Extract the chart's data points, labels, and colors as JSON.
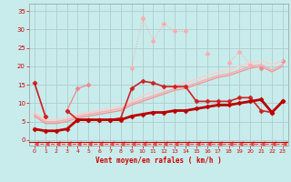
{
  "xlabel": "Vent moyen/en rafales ( km/h )",
  "xlim": [
    -0.5,
    23.5
  ],
  "ylim": [
    -1.5,
    37
  ],
  "yticks": [
    0,
    5,
    10,
    15,
    20,
    25,
    30,
    35
  ],
  "xticks": [
    0,
    1,
    2,
    3,
    4,
    5,
    6,
    7,
    8,
    9,
    10,
    11,
    12,
    13,
    14,
    15,
    16,
    17,
    18,
    19,
    20,
    21,
    22,
    23
  ],
  "bg_color": "#c8ecec",
  "grid_color": "#b0cccc",
  "series": [
    {
      "x": [
        0,
        1,
        2,
        3,
        4,
        5,
        6,
        7,
        8,
        9,
        10,
        11,
        12,
        13,
        14,
        15,
        16,
        17,
        18,
        19,
        20,
        21,
        22,
        23
      ],
      "y": [
        null,
        null,
        null,
        null,
        null,
        null,
        null,
        null,
        null,
        19.5,
        33,
        27,
        31.5,
        29.5,
        29.5,
        null,
        23.5,
        null,
        21,
        24,
        20.5,
        null,
        null,
        null
      ],
      "color": "#ffaaaa",
      "lw": 0.8,
      "marker": "D",
      "ms": 2.5,
      "ls": ":"
    },
    {
      "x": [
        0,
        1,
        2,
        3,
        4,
        5,
        6,
        7,
        8,
        9,
        10,
        11,
        12,
        13,
        14,
        15,
        16,
        17,
        18,
        19,
        20,
        21,
        22,
        23
      ],
      "y": [
        15.5,
        6.5,
        null,
        8.0,
        14.0,
        15.0,
        null,
        null,
        null,
        null,
        null,
        null,
        null,
        null,
        null,
        null,
        null,
        null,
        null,
        null,
        null,
        19.5,
        null,
        21.5
      ],
      "color": "#ee8888",
      "lw": 0.9,
      "marker": "D",
      "ms": 2.5,
      "ls": "-"
    },
    {
      "x": [
        0,
        1,
        2,
        3,
        4,
        5,
        6,
        7,
        8,
        9,
        10,
        11,
        12,
        13,
        14,
        15,
        16,
        17,
        18,
        19,
        20,
        21,
        22,
        23
      ],
      "y": [
        7.5,
        5.5,
        5.5,
        6.0,
        7.0,
        7.5,
        8.0,
        8.5,
        9.0,
        10.5,
        12.0,
        13.0,
        14.0,
        15.0,
        15.5,
        16.5,
        17.5,
        18.5,
        19.0,
        20.0,
        21.0,
        21.5,
        20.5,
        21.5
      ],
      "color": "#ffcccc",
      "lw": 1.0,
      "marker": null,
      "ms": 0,
      "ls": "-"
    },
    {
      "x": [
        0,
        1,
        2,
        3,
        4,
        5,
        6,
        7,
        8,
        9,
        10,
        11,
        12,
        13,
        14,
        15,
        16,
        17,
        18,
        19,
        20,
        21,
        22,
        23
      ],
      "y": [
        7.0,
        5.0,
        5.0,
        5.5,
        6.5,
        7.0,
        7.5,
        8.0,
        8.5,
        10.0,
        11.0,
        12.0,
        13.0,
        14.0,
        14.5,
        15.5,
        16.5,
        17.5,
        18.0,
        19.0,
        20.0,
        20.5,
        19.0,
        20.5
      ],
      "color": "#ffaaaa",
      "lw": 1.0,
      "marker": null,
      "ms": 0,
      "ls": "-"
    },
    {
      "x": [
        0,
        1,
        2,
        3,
        4,
        5,
        6,
        7,
        8,
        9,
        10,
        11,
        12,
        13,
        14,
        15,
        16,
        17,
        18,
        19,
        20,
        21,
        22,
        23
      ],
      "y": [
        6.5,
        4.5,
        4.5,
        5.0,
        6.0,
        6.5,
        7.0,
        7.5,
        8.0,
        9.5,
        10.5,
        11.5,
        12.5,
        13.5,
        14.0,
        15.0,
        16.0,
        17.0,
        17.5,
        18.5,
        19.5,
        20.0,
        18.5,
        20.0
      ],
      "color": "#ee9999",
      "lw": 1.0,
      "marker": null,
      "ms": 0,
      "ls": "-"
    },
    {
      "x": [
        0,
        1,
        2,
        3,
        4,
        5,
        6,
        7,
        8,
        9,
        10,
        11,
        12,
        13,
        14,
        15,
        16,
        17,
        18,
        19,
        20,
        21,
        22,
        23
      ],
      "y": [
        15.5,
        6.5,
        null,
        8.0,
        5.5,
        5.5,
        5.5,
        5.5,
        6.0,
        14.0,
        16.0,
        15.5,
        14.5,
        14.5,
        14.5,
        10.5,
        10.5,
        10.5,
        10.5,
        11.5,
        11.5,
        8.0,
        7.5,
        10.5
      ],
      "color": "#cc2222",
      "lw": 1.2,
      "marker": "D",
      "ms": 2.5,
      "ls": "-"
    },
    {
      "x": [
        0,
        1,
        2,
        3,
        4,
        5,
        6,
        7,
        8,
        9,
        10,
        11,
        12,
        13,
        14,
        15,
        16,
        17,
        18,
        19,
        20,
        21,
        22,
        23
      ],
      "y": [
        3.0,
        2.5,
        2.5,
        3.0,
        5.5,
        5.5,
        5.5,
        5.5,
        5.5,
        6.5,
        7.0,
        7.5,
        7.5,
        8.0,
        8.0,
        8.5,
        9.0,
        9.5,
        9.5,
        10.0,
        10.5,
        11.0,
        7.5,
        10.5
      ],
      "color": "#bb0000",
      "lw": 2.0,
      "marker": "D",
      "ms": 2.5,
      "ls": "-"
    },
    {
      "x": [
        0,
        1,
        2,
        3,
        4,
        5,
        6,
        7,
        8,
        9,
        10,
        11,
        12,
        13,
        14,
        15,
        16,
        17,
        18,
        19,
        20,
        21,
        22,
        23
      ],
      "y": [
        -1,
        -1,
        -1,
        -1,
        -1,
        -1,
        -1,
        -1,
        -1,
        -1,
        -1,
        -1,
        -1,
        -1,
        -1,
        -1,
        -1,
        -1,
        -1,
        -1,
        -1,
        -1,
        -1,
        -1
      ],
      "color": "#ee4444",
      "lw": 0.8,
      "marker": 4,
      "ms": 4,
      "ls": "--"
    }
  ]
}
